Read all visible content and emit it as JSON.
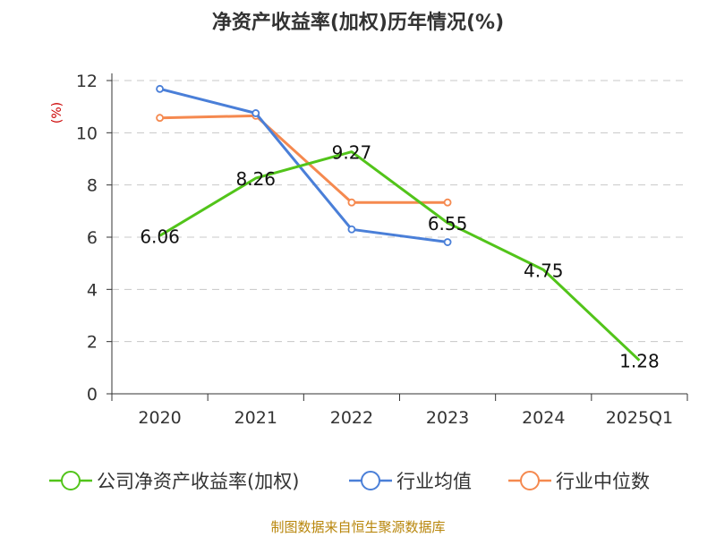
{
  "chart_data": {
    "type": "line",
    "title": "净资产收益率(加权)历年情况(%)",
    "ylabel": "(%)",
    "categories": [
      "2020",
      "2021",
      "2022",
      "2023",
      "2024",
      "2025Q1"
    ],
    "ylim": [
      0,
      12
    ],
    "yticks": [
      0,
      2,
      4,
      6,
      8,
      10,
      12
    ],
    "grid": true,
    "legend_position": "bottom",
    "series": [
      {
        "name": "公司净资产收益率(加权)",
        "color": "#52c41a",
        "values": [
          6.06,
          8.26,
          9.27,
          6.55,
          4.75,
          1.28
        ],
        "labels": [
          "6.06",
          "8.26",
          "9.27",
          "6.55",
          "4.75",
          "1.28"
        ]
      },
      {
        "name": "行业均值",
        "color": "#4a7fd8",
        "values": [
          11.68,
          10.75,
          6.3,
          5.81,
          null,
          null
        ]
      },
      {
        "name": "行业中位数",
        "color": "#f5894f",
        "values": [
          10.57,
          10.65,
          7.33,
          7.33,
          null,
          null
        ]
      }
    ]
  },
  "source_text": "制图数据来自恒生聚源数据库"
}
